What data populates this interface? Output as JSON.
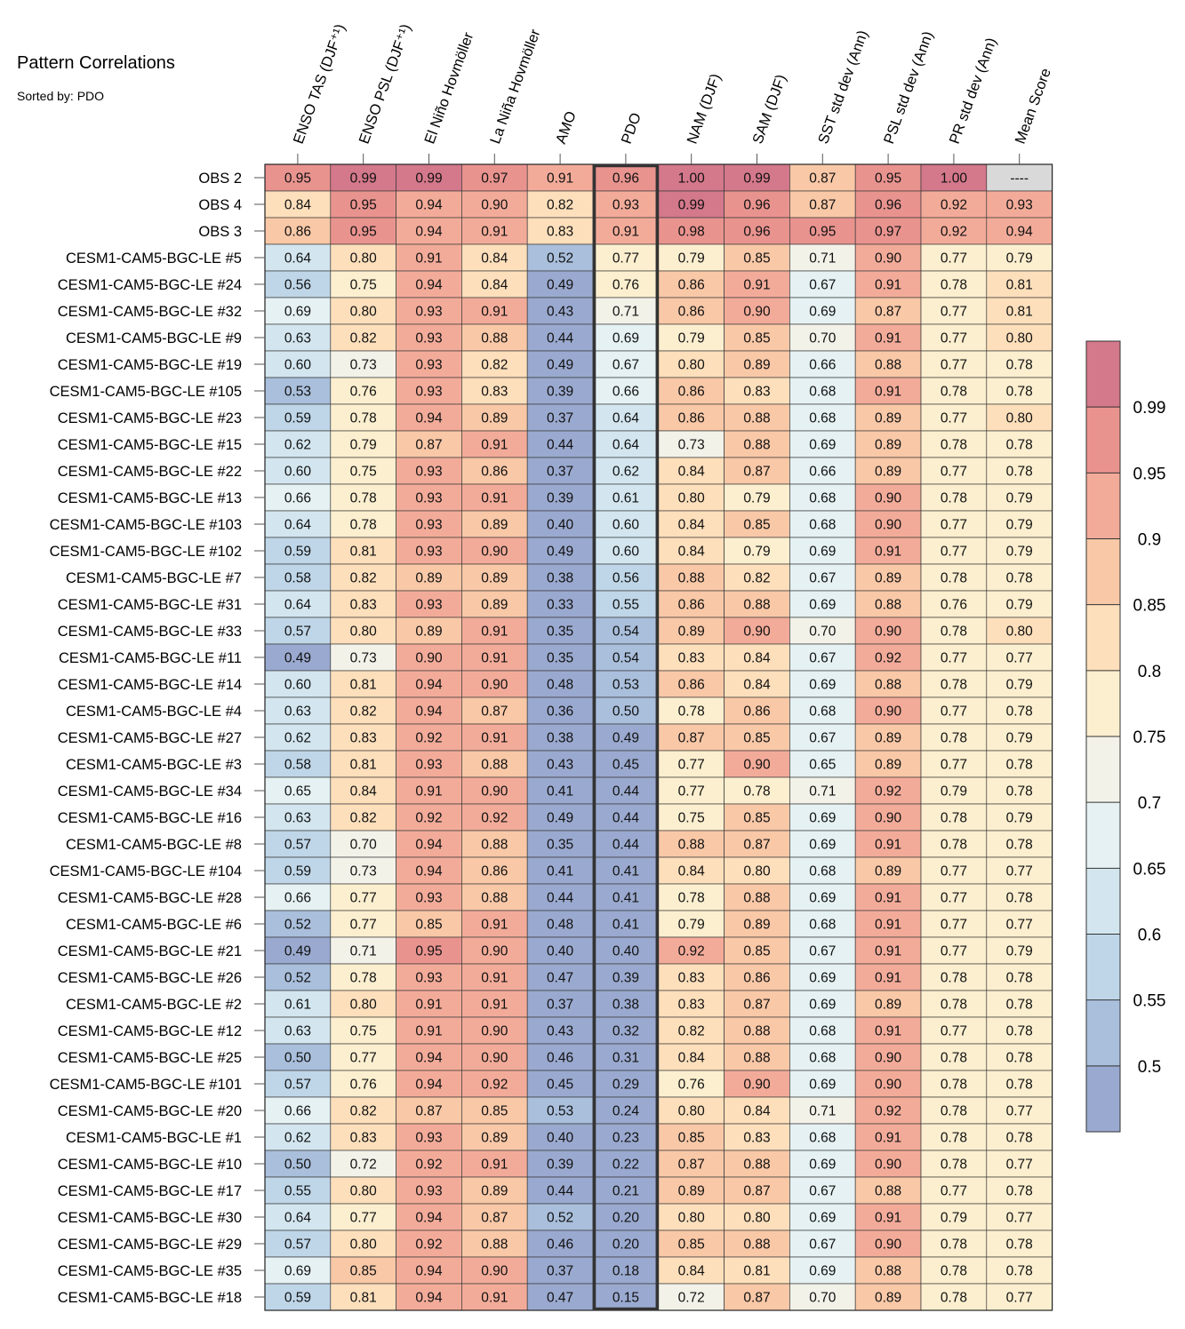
{
  "title": "Pattern Correlations",
  "subtitle": "Sorted by: PDO",
  "chart_data": {
    "type": "heatmap",
    "columns": [
      "ENSO TAS (DJF⁺¹)",
      "ENSO PSL (DJF⁺¹)",
      "El Niño Hovmöller",
      "La Niña Hovmöller",
      "AMO",
      "PDO",
      "NAM (DJF)",
      "SAM (DJF)",
      "SST std dev (Ann)",
      "PSL std dev (Ann)",
      "PR std dev (Ann)",
      "Mean Score"
    ],
    "highlighted_column": "PDO",
    "sorted_by": "PDO",
    "rows": [
      {
        "name": "OBS 2",
        "values": [
          "0.95",
          "0.99",
          "0.99",
          "0.97",
          "0.91",
          "0.96",
          "1.00",
          "0.99",
          "0.87",
          "0.95",
          "1.00",
          "----"
        ]
      },
      {
        "name": "OBS 4",
        "values": [
          "0.84",
          "0.95",
          "0.94",
          "0.90",
          "0.82",
          "0.93",
          "0.99",
          "0.96",
          "0.87",
          "0.96",
          "0.92",
          "0.93"
        ]
      },
      {
        "name": "OBS 3",
        "values": [
          "0.86",
          "0.95",
          "0.94",
          "0.91",
          "0.83",
          "0.91",
          "0.98",
          "0.96",
          "0.95",
          "0.97",
          "0.92",
          "0.94"
        ]
      },
      {
        "name": "CESM1-CAM5-BGC-LE #5",
        "values": [
          "0.64",
          "0.80",
          "0.91",
          "0.84",
          "0.52",
          "0.77",
          "0.79",
          "0.85",
          "0.71",
          "0.90",
          "0.77",
          "0.79"
        ]
      },
      {
        "name": "CESM1-CAM5-BGC-LE #24",
        "values": [
          "0.56",
          "0.75",
          "0.94",
          "0.84",
          "0.49",
          "0.76",
          "0.86",
          "0.91",
          "0.67",
          "0.91",
          "0.78",
          "0.81"
        ]
      },
      {
        "name": "CESM1-CAM5-BGC-LE #32",
        "values": [
          "0.69",
          "0.80",
          "0.93",
          "0.91",
          "0.43",
          "0.71",
          "0.86",
          "0.90",
          "0.69",
          "0.87",
          "0.77",
          "0.81"
        ]
      },
      {
        "name": "CESM1-CAM5-BGC-LE #9",
        "values": [
          "0.63",
          "0.82",
          "0.93",
          "0.88",
          "0.44",
          "0.69",
          "0.79",
          "0.85",
          "0.70",
          "0.91",
          "0.77",
          "0.80"
        ]
      },
      {
        "name": "CESM1-CAM5-BGC-LE #19",
        "values": [
          "0.60",
          "0.73",
          "0.93",
          "0.82",
          "0.49",
          "0.67",
          "0.80",
          "0.89",
          "0.66",
          "0.88",
          "0.77",
          "0.78"
        ]
      },
      {
        "name": "CESM1-CAM5-BGC-LE #105",
        "values": [
          "0.53",
          "0.76",
          "0.93",
          "0.83",
          "0.39",
          "0.66",
          "0.86",
          "0.83",
          "0.68",
          "0.91",
          "0.78",
          "0.78"
        ]
      },
      {
        "name": "CESM1-CAM5-BGC-LE #23",
        "values": [
          "0.59",
          "0.78",
          "0.94",
          "0.89",
          "0.37",
          "0.64",
          "0.86",
          "0.88",
          "0.68",
          "0.89",
          "0.77",
          "0.80"
        ]
      },
      {
        "name": "CESM1-CAM5-BGC-LE #15",
        "values": [
          "0.62",
          "0.79",
          "0.87",
          "0.91",
          "0.44",
          "0.64",
          "0.73",
          "0.88",
          "0.69",
          "0.89",
          "0.78",
          "0.78"
        ]
      },
      {
        "name": "CESM1-CAM5-BGC-LE #22",
        "values": [
          "0.60",
          "0.75",
          "0.93",
          "0.86",
          "0.37",
          "0.62",
          "0.84",
          "0.87",
          "0.66",
          "0.89",
          "0.77",
          "0.78"
        ]
      },
      {
        "name": "CESM1-CAM5-BGC-LE #13",
        "values": [
          "0.66",
          "0.78",
          "0.93",
          "0.91",
          "0.39",
          "0.61",
          "0.80",
          "0.79",
          "0.68",
          "0.90",
          "0.78",
          "0.79"
        ]
      },
      {
        "name": "CESM1-CAM5-BGC-LE #103",
        "values": [
          "0.64",
          "0.78",
          "0.93",
          "0.89",
          "0.40",
          "0.60",
          "0.84",
          "0.85",
          "0.68",
          "0.90",
          "0.77",
          "0.79"
        ]
      },
      {
        "name": "CESM1-CAM5-BGC-LE #102",
        "values": [
          "0.59",
          "0.81",
          "0.93",
          "0.90",
          "0.49",
          "0.60",
          "0.84",
          "0.79",
          "0.69",
          "0.91",
          "0.77",
          "0.79"
        ]
      },
      {
        "name": "CESM1-CAM5-BGC-LE #7",
        "values": [
          "0.58",
          "0.82",
          "0.89",
          "0.89",
          "0.38",
          "0.56",
          "0.88",
          "0.82",
          "0.67",
          "0.89",
          "0.78",
          "0.78"
        ]
      },
      {
        "name": "CESM1-CAM5-BGC-LE #31",
        "values": [
          "0.64",
          "0.83",
          "0.93",
          "0.89",
          "0.33",
          "0.55",
          "0.86",
          "0.88",
          "0.69",
          "0.88",
          "0.76",
          "0.79"
        ]
      },
      {
        "name": "CESM1-CAM5-BGC-LE #33",
        "values": [
          "0.57",
          "0.80",
          "0.89",
          "0.91",
          "0.35",
          "0.54",
          "0.89",
          "0.90",
          "0.70",
          "0.90",
          "0.78",
          "0.80"
        ]
      },
      {
        "name": "CESM1-CAM5-BGC-LE #11",
        "values": [
          "0.49",
          "0.73",
          "0.90",
          "0.91",
          "0.35",
          "0.54",
          "0.83",
          "0.84",
          "0.67",
          "0.92",
          "0.77",
          "0.77"
        ]
      },
      {
        "name": "CESM1-CAM5-BGC-LE #14",
        "values": [
          "0.60",
          "0.81",
          "0.94",
          "0.90",
          "0.48",
          "0.53",
          "0.86",
          "0.84",
          "0.69",
          "0.88",
          "0.78",
          "0.79"
        ]
      },
      {
        "name": "CESM1-CAM5-BGC-LE #4",
        "values": [
          "0.63",
          "0.82",
          "0.94",
          "0.87",
          "0.36",
          "0.50",
          "0.78",
          "0.86",
          "0.68",
          "0.90",
          "0.77",
          "0.78"
        ]
      },
      {
        "name": "CESM1-CAM5-BGC-LE #27",
        "values": [
          "0.62",
          "0.83",
          "0.92",
          "0.91",
          "0.38",
          "0.49",
          "0.87",
          "0.85",
          "0.67",
          "0.89",
          "0.78",
          "0.79"
        ]
      },
      {
        "name": "CESM1-CAM5-BGC-LE #3",
        "values": [
          "0.58",
          "0.81",
          "0.93",
          "0.88",
          "0.43",
          "0.45",
          "0.77",
          "0.90",
          "0.65",
          "0.89",
          "0.77",
          "0.78"
        ]
      },
      {
        "name": "CESM1-CAM5-BGC-LE #34",
        "values": [
          "0.65",
          "0.84",
          "0.91",
          "0.90",
          "0.41",
          "0.44",
          "0.77",
          "0.78",
          "0.71",
          "0.92",
          "0.79",
          "0.78"
        ]
      },
      {
        "name": "CESM1-CAM5-BGC-LE #16",
        "values": [
          "0.63",
          "0.82",
          "0.92",
          "0.92",
          "0.49",
          "0.44",
          "0.75",
          "0.85",
          "0.69",
          "0.90",
          "0.78",
          "0.79"
        ]
      },
      {
        "name": "CESM1-CAM5-BGC-LE #8",
        "values": [
          "0.57",
          "0.70",
          "0.94",
          "0.88",
          "0.35",
          "0.44",
          "0.88",
          "0.87",
          "0.69",
          "0.91",
          "0.78",
          "0.78"
        ]
      },
      {
        "name": "CESM1-CAM5-BGC-LE #104",
        "values": [
          "0.59",
          "0.73",
          "0.94",
          "0.86",
          "0.41",
          "0.41",
          "0.84",
          "0.80",
          "0.68",
          "0.89",
          "0.77",
          "0.77"
        ]
      },
      {
        "name": "CESM1-CAM5-BGC-LE #28",
        "values": [
          "0.66",
          "0.77",
          "0.93",
          "0.88",
          "0.44",
          "0.41",
          "0.78",
          "0.88",
          "0.69",
          "0.91",
          "0.77",
          "0.78"
        ]
      },
      {
        "name": "CESM1-CAM5-BGC-LE #6",
        "values": [
          "0.52",
          "0.77",
          "0.85",
          "0.91",
          "0.48",
          "0.41",
          "0.79",
          "0.89",
          "0.68",
          "0.91",
          "0.77",
          "0.77"
        ]
      },
      {
        "name": "CESM1-CAM5-BGC-LE #21",
        "values": [
          "0.49",
          "0.71",
          "0.95",
          "0.90",
          "0.40",
          "0.40",
          "0.92",
          "0.85",
          "0.67",
          "0.91",
          "0.77",
          "0.79"
        ]
      },
      {
        "name": "CESM1-CAM5-BGC-LE #26",
        "values": [
          "0.52",
          "0.78",
          "0.93",
          "0.91",
          "0.47",
          "0.39",
          "0.83",
          "0.86",
          "0.69",
          "0.91",
          "0.78",
          "0.78"
        ]
      },
      {
        "name": "CESM1-CAM5-BGC-LE #2",
        "values": [
          "0.61",
          "0.80",
          "0.91",
          "0.91",
          "0.37",
          "0.38",
          "0.83",
          "0.87",
          "0.69",
          "0.89",
          "0.78",
          "0.78"
        ]
      },
      {
        "name": "CESM1-CAM5-BGC-LE #12",
        "values": [
          "0.63",
          "0.75",
          "0.91",
          "0.90",
          "0.43",
          "0.32",
          "0.82",
          "0.88",
          "0.68",
          "0.91",
          "0.77",
          "0.78"
        ]
      },
      {
        "name": "CESM1-CAM5-BGC-LE #25",
        "values": [
          "0.50",
          "0.77",
          "0.94",
          "0.90",
          "0.46",
          "0.31",
          "0.84",
          "0.88",
          "0.68",
          "0.90",
          "0.78",
          "0.78"
        ]
      },
      {
        "name": "CESM1-CAM5-BGC-LE #101",
        "values": [
          "0.57",
          "0.76",
          "0.94",
          "0.92",
          "0.45",
          "0.29",
          "0.76",
          "0.90",
          "0.69",
          "0.90",
          "0.78",
          "0.78"
        ]
      },
      {
        "name": "CESM1-CAM5-BGC-LE #20",
        "values": [
          "0.66",
          "0.82",
          "0.87",
          "0.85",
          "0.53",
          "0.24",
          "0.80",
          "0.84",
          "0.71",
          "0.92",
          "0.78",
          "0.77"
        ]
      },
      {
        "name": "CESM1-CAM5-BGC-LE #1",
        "values": [
          "0.62",
          "0.83",
          "0.93",
          "0.89",
          "0.40",
          "0.23",
          "0.85",
          "0.83",
          "0.68",
          "0.91",
          "0.78",
          "0.78"
        ]
      },
      {
        "name": "CESM1-CAM5-BGC-LE #10",
        "values": [
          "0.50",
          "0.72",
          "0.92",
          "0.91",
          "0.39",
          "0.22",
          "0.87",
          "0.88",
          "0.69",
          "0.90",
          "0.78",
          "0.77"
        ]
      },
      {
        "name": "CESM1-CAM5-BGC-LE #17",
        "values": [
          "0.55",
          "0.80",
          "0.93",
          "0.89",
          "0.44",
          "0.21",
          "0.89",
          "0.87",
          "0.67",
          "0.88",
          "0.77",
          "0.78"
        ]
      },
      {
        "name": "CESM1-CAM5-BGC-LE #30",
        "values": [
          "0.64",
          "0.77",
          "0.94",
          "0.87",
          "0.52",
          "0.20",
          "0.80",
          "0.80",
          "0.69",
          "0.91",
          "0.79",
          "0.77"
        ]
      },
      {
        "name": "CESM1-CAM5-BGC-LE #29",
        "values": [
          "0.57",
          "0.80",
          "0.92",
          "0.88",
          "0.46",
          "0.20",
          "0.85",
          "0.88",
          "0.67",
          "0.90",
          "0.78",
          "0.78"
        ]
      },
      {
        "name": "CESM1-CAM5-BGC-LE #35",
        "values": [
          "0.69",
          "0.85",
          "0.94",
          "0.90",
          "0.37",
          "0.18",
          "0.84",
          "0.81",
          "0.69",
          "0.88",
          "0.78",
          "0.78"
        ]
      },
      {
        "name": "CESM1-CAM5-BGC-LE #18",
        "values": [
          "0.59",
          "0.81",
          "0.94",
          "0.91",
          "0.47",
          "0.15",
          "0.72",
          "0.87",
          "0.70",
          "0.89",
          "0.78",
          "0.77"
        ]
      }
    ],
    "colorbar": {
      "labels": [
        "0.99",
        "0.95",
        "0.9",
        "0.85",
        "0.8",
        "0.75",
        "0.7",
        "0.65",
        "0.6",
        "0.55",
        "0.5"
      ],
      "thresholds": [
        0.5,
        0.55,
        0.6,
        0.65,
        0.7,
        0.75,
        0.8,
        0.85,
        0.9,
        0.95,
        0.99
      ],
      "colors": [
        "#9aa9cf",
        "#a9bfdc",
        "#bfd6e8",
        "#d3e6ef",
        "#e5f1f3",
        "#f3f2e9",
        "#fcefcf",
        "#fddfbb",
        "#f9c8a7",
        "#f3ab99",
        "#e9938f",
        "#d4788b"
      ],
      "missing_color": "#d9d9d9"
    }
  }
}
